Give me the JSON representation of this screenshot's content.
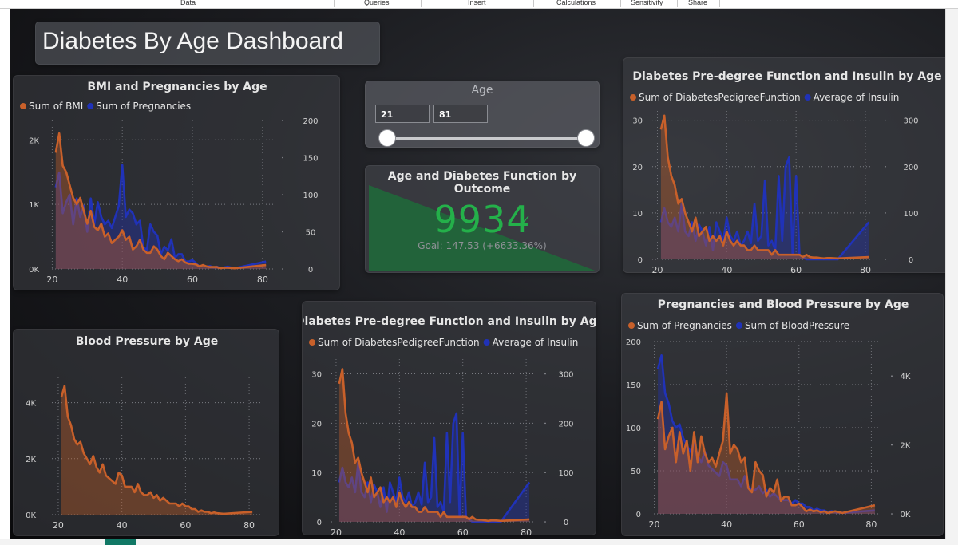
{
  "ribbon": {
    "tabs": [
      "Data",
      "Queries",
      "Insert",
      "Calculations",
      "Sensitivity",
      "Share"
    ]
  },
  "dashboard": {
    "title": "Diabetes By Age Dashboard"
  },
  "slicer": {
    "title": "Age",
    "min_value": "21",
    "max_value": "81"
  },
  "kpi": {
    "title": "Age and Diabetes Function by Outcome",
    "value": "9934",
    "goal_text": "Goal: 147.53 (+6633.36%)",
    "check_glyph": "✓",
    "status_color": "#24b04a"
  },
  "colors": {
    "orange": "#c8602a",
    "blue": "#2032b8",
    "text_light": "#e6e6e6",
    "tick": "#d0d0d0"
  },
  "chart_data": [
    {
      "id": "bmi-preg",
      "type": "area",
      "title": "BMI and Pregnancies by Age",
      "legend_position": "top-left",
      "x": [
        21,
        22,
        23,
        24,
        25,
        26,
        27,
        28,
        29,
        30,
        31,
        32,
        33,
        34,
        35,
        36,
        37,
        38,
        39,
        40,
        41,
        42,
        43,
        44,
        45,
        46,
        47,
        48,
        49,
        50,
        51,
        52,
        53,
        54,
        55,
        56,
        57,
        58,
        59,
        60,
        61,
        62,
        63,
        64,
        65,
        66,
        67,
        68,
        69,
        70,
        72,
        81
      ],
      "xlim": [
        19,
        83
      ],
      "xticks": [
        20,
        40,
        60,
        80
      ],
      "series": [
        {
          "name": "Sum of BMI",
          "axis": "left",
          "color": "#c8602a",
          "values": [
            1800,
            2100,
            1600,
            1500,
            1300,
            1100,
            1000,
            1100,
            900,
            700,
            900,
            650,
            600,
            700,
            500,
            550,
            400,
            450,
            500,
            600,
            450,
            500,
            300,
            350,
            450,
            300,
            250,
            250,
            350,
            300,
            200,
            150,
            250,
            200,
            150,
            120,
            150,
            100,
            80,
            80,
            70,
            40,
            60,
            40,
            30,
            30,
            30,
            10,
            20,
            20,
            10,
            60
          ]
        },
        {
          "name": "Sum of Pregnancies",
          "axis": "right",
          "color": "#2032b8",
          "values": [
            110,
            130,
            75,
            90,
            100,
            60,
            95,
            70,
            85,
            50,
            95,
            60,
            90,
            70,
            60,
            65,
            55,
            70,
            85,
            140,
            70,
            80,
            75,
            60,
            65,
            30,
            25,
            60,
            50,
            45,
            20,
            30,
            25,
            40,
            15,
            20,
            20,
            10,
            10,
            12,
            8,
            3,
            5,
            3,
            4,
            2,
            3,
            1,
            2,
            3,
            1,
            10
          ]
        }
      ],
      "y_left": {
        "lim": [
          0,
          2300
        ],
        "ticks": [
          0,
          1000,
          2000
        ],
        "labels": [
          "0K",
          "1K",
          "2K"
        ]
      },
      "y_right": {
        "lim": [
          0,
          200
        ],
        "ticks": [
          0,
          50,
          100,
          150,
          200
        ],
        "labels": [
          "0",
          "50",
          "100",
          "150",
          "200"
        ]
      }
    },
    {
      "id": "dpf-insulin-top",
      "type": "area",
      "title": "Diabetes Pre-degree Function and Insulin by Age",
      "legend_position": "top-left",
      "x": [
        21,
        22,
        23,
        24,
        25,
        26,
        27,
        28,
        29,
        30,
        31,
        32,
        33,
        34,
        35,
        36,
        37,
        38,
        39,
        40,
        41,
        42,
        43,
        44,
        45,
        46,
        47,
        48,
        49,
        50,
        51,
        52,
        53,
        54,
        55,
        56,
        57,
        58,
        59,
        60,
        61,
        62,
        63,
        64,
        65,
        66,
        67,
        68,
        69,
        70,
        72,
        81
      ],
      "xlim": [
        18.5,
        83
      ],
      "xticks": [
        20,
        40,
        60,
        80
      ],
      "series": [
        {
          "name": "Sum of DiabetesPedigreeFunction",
          "axis": "left",
          "color": "#c8602a",
          "values": [
            28,
            31,
            22,
            18,
            16,
            12,
            13,
            10,
            8,
            6,
            9,
            5,
            6,
            7,
            4,
            5,
            4,
            5,
            3,
            6,
            4,
            3,
            4,
            3,
            3,
            2,
            2,
            3,
            2,
            2,
            2,
            2,
            1,
            2,
            1,
            1,
            1,
            1,
            1,
            1,
            1,
            0.5,
            1,
            0.5,
            0.4,
            0.4,
            0.3,
            0.2,
            0.3,
            0.3,
            0.2,
            0.5
          ]
        },
        {
          "name": "Average of Insulin",
          "axis": "right",
          "color": "#2032b8",
          "values": [
            80,
            110,
            80,
            70,
            90,
            60,
            120,
            60,
            50,
            80,
            40,
            75,
            60,
            30,
            70,
            20,
            80,
            60,
            40,
            90,
            50,
            40,
            60,
            30,
            40,
            60,
            35,
            120,
            40,
            50,
            170,
            30,
            40,
            20,
            180,
            40,
            200,
            220,
            10,
            180,
            10,
            5,
            0,
            0,
            0,
            0,
            0,
            0,
            0,
            0,
            0,
            80
          ]
        }
      ],
      "y_left": {
        "lim": [
          0,
          32
        ],
        "ticks": [
          0,
          10,
          20,
          30
        ],
        "labels": [
          "0",
          "10",
          "20",
          "30"
        ]
      },
      "y_right": {
        "lim": [
          0,
          320
        ],
        "ticks": [
          0,
          100,
          200,
          300
        ],
        "labels": [
          "0",
          "100",
          "200",
          "300"
        ]
      }
    },
    {
      "id": "blood-pressure",
      "type": "area",
      "title": "Blood Pressure by Age",
      "legend_position": "none",
      "x": [
        21,
        22,
        23,
        24,
        25,
        26,
        27,
        28,
        29,
        30,
        31,
        32,
        33,
        34,
        35,
        36,
        37,
        38,
        39,
        40,
        41,
        42,
        43,
        44,
        45,
        46,
        47,
        48,
        49,
        50,
        51,
        52,
        53,
        54,
        55,
        56,
        57,
        58,
        59,
        60,
        61,
        62,
        63,
        64,
        65,
        66,
        67,
        68,
        69,
        70,
        72,
        81
      ],
      "xlim": [
        16,
        85
      ],
      "xticks": [
        20,
        40,
        60,
        80
      ],
      "series": [
        {
          "name": "",
          "axis": "left",
          "color": "#c8602a",
          "values": [
            4200,
            4600,
            3500,
            3200,
            2700,
            2500,
            2600,
            2200,
            2000,
            1800,
            2100,
            1700,
            1500,
            1800,
            1400,
            1300,
            1200,
            1100,
            1500,
            1400,
            1000,
            1000,
            1000,
            800,
            1100,
            800,
            700,
            700,
            800,
            600,
            700,
            500,
            600,
            500,
            400,
            400,
            400,
            300,
            400,
            300,
            300,
            200,
            200,
            100,
            150,
            100,
            100,
            50,
            80,
            50,
            30,
            100
          ]
        }
      ],
      "y_left": {
        "lim": [
          0,
          4900
        ],
        "ticks": [
          0,
          2000,
          4000
        ],
        "labels": [
          "0K",
          "2K",
          "4K"
        ]
      }
    },
    {
      "id": "dpf-insulin-bottom",
      "type": "area",
      "title": "Diabetes Pre-degree Function and Insulin by Age",
      "legend_position": "top-left",
      "x": [
        21,
        22,
        23,
        24,
        25,
        26,
        27,
        28,
        29,
        30,
        31,
        32,
        33,
        34,
        35,
        36,
        37,
        38,
        39,
        40,
        41,
        42,
        43,
        44,
        45,
        46,
        47,
        48,
        49,
        50,
        51,
        52,
        53,
        54,
        55,
        56,
        57,
        58,
        59,
        60,
        61,
        62,
        63,
        64,
        65,
        66,
        67,
        68,
        69,
        70,
        72,
        81
      ],
      "xlim": [
        18.5,
        83
      ],
      "xticks": [
        20,
        40,
        60,
        80
      ],
      "series": [
        {
          "name": "Sum of DiabetesPedigreeFunction",
          "axis": "left",
          "color": "#c8602a",
          "values": [
            28,
            31,
            22,
            18,
            16,
            12,
            13,
            10,
            8,
            6,
            9,
            5,
            6,
            7,
            4,
            5,
            4,
            5,
            3,
            6,
            4,
            3,
            4,
            3,
            3,
            2,
            2,
            3,
            2,
            2,
            2,
            2,
            1,
            2,
            1,
            1,
            1,
            1,
            1,
            1,
            1,
            0.5,
            1,
            0.5,
            0.4,
            0.4,
            0.3,
            0.2,
            0.3,
            0.3,
            0.2,
            0.5
          ]
        },
        {
          "name": "Average of Insulin",
          "axis": "right",
          "color": "#2032b8",
          "values": [
            80,
            110,
            80,
            70,
            90,
            60,
            120,
            60,
            50,
            80,
            40,
            75,
            60,
            30,
            70,
            20,
            80,
            60,
            40,
            90,
            50,
            40,
            60,
            30,
            40,
            60,
            35,
            120,
            40,
            50,
            170,
            30,
            40,
            20,
            180,
            40,
            200,
            220,
            10,
            180,
            10,
            5,
            0,
            0,
            0,
            0,
            0,
            0,
            0,
            0,
            0,
            80
          ]
        }
      ],
      "y_left": {
        "lim": [
          0,
          33
        ],
        "ticks": [
          0,
          10,
          20,
          30
        ],
        "labels": [
          "0",
          "10",
          "20",
          "30"
        ]
      },
      "y_right": {
        "lim": [
          0,
          330
        ],
        "ticks": [
          0,
          100,
          200,
          300
        ],
        "labels": [
          "0",
          "100",
          "200",
          "300"
        ]
      }
    },
    {
      "id": "preg-bp",
      "type": "area",
      "title": "Pregnancies and Blood Pressure by Age",
      "legend_position": "top-left",
      "x": [
        21,
        22,
        23,
        24,
        25,
        26,
        27,
        28,
        29,
        30,
        31,
        32,
        33,
        34,
        35,
        36,
        37,
        38,
        39,
        40,
        41,
        42,
        43,
        44,
        45,
        46,
        47,
        48,
        49,
        50,
        51,
        52,
        53,
        54,
        55,
        56,
        57,
        58,
        59,
        60,
        61,
        62,
        63,
        64,
        65,
        66,
        67,
        68,
        69,
        70,
        72,
        81
      ],
      "xlim": [
        19,
        83
      ],
      "xticks": [
        20,
        40,
        60,
        80
      ],
      "series": [
        {
          "name": "Sum of Pregnancies",
          "axis": "left",
          "color": "#c8602a",
          "values": [
            110,
            130,
            75,
            90,
            100,
            60,
            95,
            70,
            85,
            50,
            95,
            60,
            90,
            70,
            60,
            65,
            55,
            70,
            85,
            140,
            70,
            80,
            75,
            60,
            65,
            30,
            25,
            60,
            50,
            45,
            20,
            30,
            25,
            40,
            15,
            20,
            20,
            10,
            10,
            12,
            8,
            3,
            5,
            3,
            4,
            2,
            3,
            1,
            2,
            3,
            1,
            10
          ]
        },
        {
          "name": "Sum of BloodPressure",
          "axis": "right",
          "color": "#2032b8",
          "values": [
            4200,
            4600,
            3500,
            3200,
            2700,
            2500,
            2600,
            2200,
            2000,
            1800,
            2100,
            1700,
            1500,
            1800,
            1400,
            1300,
            1200,
            1100,
            1500,
            1400,
            1000,
            1000,
            1000,
            800,
            1100,
            800,
            700,
            700,
            800,
            600,
            700,
            500,
            600,
            500,
            400,
            400,
            400,
            300,
            400,
            300,
            300,
            200,
            200,
            100,
            150,
            100,
            100,
            50,
            80,
            50,
            30,
            100
          ]
        }
      ],
      "y_left": {
        "lim": [
          0,
          200
        ],
        "ticks": [
          0,
          50,
          100,
          150,
          200
        ],
        "labels": [
          "0",
          "50",
          "100",
          "150",
          "200"
        ]
      },
      "y_right": {
        "lim": [
          0,
          5000
        ],
        "ticks": [
          0,
          2000,
          4000
        ],
        "labels": [
          "0K",
          "2K",
          "4K"
        ]
      }
    }
  ]
}
